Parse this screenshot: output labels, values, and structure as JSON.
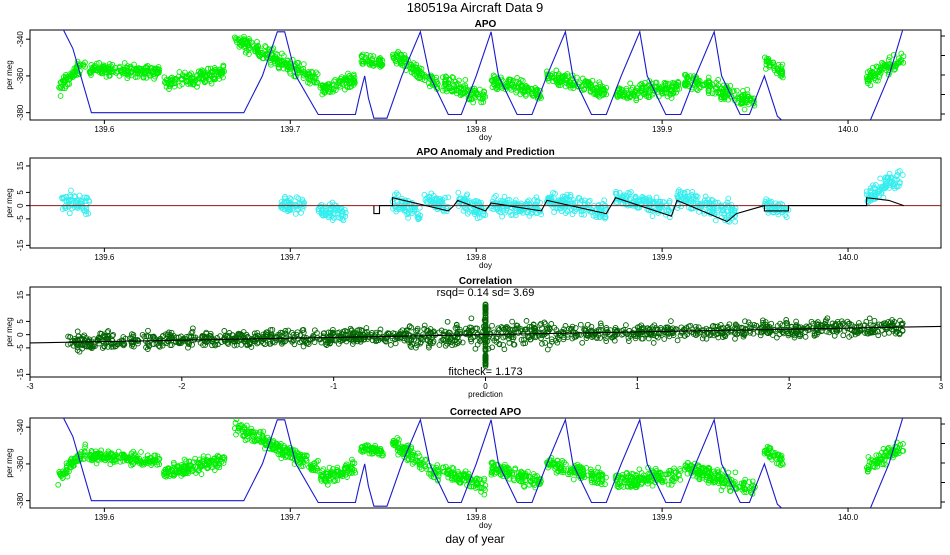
{
  "page": {
    "main_title": "180519a   Aircraft Data 9",
    "bottom_label": "day of year"
  },
  "colors": {
    "apo_points": "#00ee00",
    "altitude_line": "#1a1acc",
    "anomaly_points": "#33eeee",
    "zero_line": "#8b1a1a",
    "prediction_line": "#000000",
    "correlation_points": "#006400",
    "fit_line": "#000000"
  },
  "chart_data": [
    {
      "id": "apo",
      "type": "scatter",
      "title": "APO",
      "xlabel": "doy",
      "ylabel": "per meg",
      "xlim": [
        139.56,
        140.05
      ],
      "ylim": [
        -384,
        -335
      ],
      "xticks": [
        "139.6",
        "139.7",
        "139.8",
        "139.9",
        "140.0"
      ],
      "yticks": [
        "-340",
        "-360",
        "-380"
      ],
      "right_axis_ticks": 5,
      "series": [
        {
          "kind": "points",
          "segments": [
            {
              "x": [
                139.575,
                139.59
              ],
              "y": [
                -368,
                -352
              ],
              "spread": 6
            },
            {
              "x": [
                139.592,
                139.63
              ],
              "y": [
                -356,
                -358
              ],
              "spread": 5
            },
            {
              "x": [
                139.632,
                139.665
              ],
              "y": [
                -364,
                -358
              ],
              "spread": 6
            },
            {
              "x": [
                139.67,
                139.715
              ],
              "y": [
                -340,
                -362
              ],
              "spread": 6
            },
            {
              "x": [
                139.716,
                139.735
              ],
              "y": [
                -368,
                -362
              ],
              "spread": 6
            },
            {
              "x": [
                139.738,
                139.75
              ],
              "y": [
                -352,
                -353
              ],
              "spread": 5
            },
            {
              "x": [
                139.755,
                139.78
              ],
              "y": [
                -348,
                -366
              ],
              "spread": 6
            },
            {
              "x": [
                139.782,
                139.805
              ],
              "y": [
                -364,
                -372
              ],
              "spread": 7
            },
            {
              "x": [
                139.808,
                139.835
              ],
              "y": [
                -362,
                -370
              ],
              "spread": 6
            },
            {
              "x": [
                139.838,
                139.87
              ],
              "y": [
                -360,
                -368
              ],
              "spread": 6
            },
            {
              "x": [
                139.875,
                139.91
              ],
              "y": [
                -370,
                -366
              ],
              "spread": 7
            },
            {
              "x": [
                139.912,
                139.95
              ],
              "y": [
                -362,
                -374
              ],
              "spread": 7
            },
            {
              "x": [
                139.955,
                139.965
              ],
              "y": [
                -352,
                -358
              ],
              "spread": 5
            },
            {
              "x": [
                140.01,
                140.03
              ],
              "y": [
                -362,
                -350
              ],
              "spread": 6
            }
          ]
        },
        {
          "kind": "line",
          "name": "altitude",
          "points": [
            [
              139.56,
              -333
            ],
            [
              139.577,
              -333
            ],
            [
              139.583,
              -345
            ],
            [
              139.593,
              -380
            ],
            [
              139.675,
              -380
            ],
            [
              139.685,
              -360
            ],
            [
              139.693,
              -336
            ],
            [
              139.697,
              -336
            ],
            [
              139.703,
              -360
            ],
            [
              139.715,
              -381
            ],
            [
              139.735,
              -381
            ],
            [
              139.737,
              -372
            ],
            [
              139.74,
              -360
            ],
            [
              139.742,
              -372
            ],
            [
              139.745,
              -383
            ],
            [
              139.752,
              -383
            ],
            [
              139.76,
              -360
            ],
            [
              139.77,
              -336
            ],
            [
              139.775,
              -360
            ],
            [
              139.785,
              -381
            ],
            [
              139.792,
              -381
            ],
            [
              139.8,
              -360
            ],
            [
              139.808,
              -336
            ],
            [
              139.812,
              -360
            ],
            [
              139.822,
              -381
            ],
            [
              139.83,
              -381
            ],
            [
              139.838,
              -360
            ],
            [
              139.848,
              -336
            ],
            [
              139.852,
              -360
            ],
            [
              139.862,
              -381
            ],
            [
              139.87,
              -381
            ],
            [
              139.878,
              -360
            ],
            [
              139.888,
              -336
            ],
            [
              139.892,
              -360
            ],
            [
              139.902,
              -381
            ],
            [
              139.91,
              -381
            ],
            [
              139.918,
              -360
            ],
            [
              139.928,
              -336
            ],
            [
              139.932,
              -360
            ],
            [
              139.942,
              -381
            ],
            [
              139.947,
              -381
            ],
            [
              139.955,
              -360
            ],
            [
              139.962,
              -382
            ],
            [
              139.97,
              -389
            ],
            [
              140.0,
              -389
            ],
            [
              140.01,
              -389
            ],
            [
              140.022,
              -360
            ],
            [
              140.03,
              -333
            ],
            [
              140.05,
              -333
            ]
          ]
        }
      ]
    },
    {
      "id": "anomaly",
      "type": "scatter",
      "title": "APO Anomaly and Prediction",
      "xlabel": "doy",
      "ylabel": "per meg",
      "xlim": [
        139.56,
        140.05
      ],
      "ylim": [
        -16,
        18
      ],
      "xticks": [
        "139.6",
        "139.7",
        "139.8",
        "139.9",
        "140.0"
      ],
      "yticks": [
        "15",
        "5",
        "0",
        "-5",
        "-15"
      ],
      "series": [
        {
          "kind": "points",
          "segments": [
            {
              "x": [
                139.577,
                139.592
              ],
              "y": [
                2,
                0
              ],
              "spread": 6
            },
            {
              "x": [
                139.695,
                139.708
              ],
              "y": [
                1,
                0
              ],
              "spread": 4
            },
            {
              "x": [
                139.715,
                139.73
              ],
              "y": [
                -1,
                -3
              ],
              "spread": 5
            },
            {
              "x": [
                139.755,
                139.77
              ],
              "y": [
                2,
                -3
              ],
              "spread": 5
            },
            {
              "x": [
                139.772,
                139.785
              ],
              "y": [
                2,
                0
              ],
              "spread": 5
            },
            {
              "x": [
                139.79,
                139.805
              ],
              "y": [
                1,
                -2
              ],
              "spread": 5
            },
            {
              "x": [
                139.808,
                139.835
              ],
              "y": [
                0,
                -1
              ],
              "spread": 5
            },
            {
              "x": [
                139.838,
                139.87
              ],
              "y": [
                2,
                -2
              ],
              "spread": 5
            },
            {
              "x": [
                139.875,
                139.905
              ],
              "y": [
                3,
                -1
              ],
              "spread": 5
            },
            {
              "x": [
                139.908,
                139.94
              ],
              "y": [
                3,
                -3
              ],
              "spread": 6
            },
            {
              "x": [
                139.955,
                139.968
              ],
              "y": [
                0,
                -2
              ],
              "spread": 4
            },
            {
              "x": [
                140.01,
                140.03
              ],
              "y": [
                3,
                12
              ],
              "spread": 5
            }
          ]
        },
        {
          "kind": "hline",
          "name": "zero",
          "y": 0
        },
        {
          "kind": "line",
          "name": "prediction",
          "points": [
            [
              139.745,
              0
            ],
            [
              139.745,
              -3
            ],
            [
              139.748,
              -3
            ],
            [
              139.748,
              0
            ],
            [
              139.755,
              0
            ],
            [
              139.755,
              3
            ],
            [
              139.785,
              -2
            ],
            [
              139.788,
              0
            ],
            [
              139.79,
              2
            ],
            [
              139.805,
              -2
            ],
            [
              139.808,
              1
            ],
            [
              139.835,
              -2
            ],
            [
              139.838,
              2
            ],
            [
              139.87,
              -3
            ],
            [
              139.875,
              3
            ],
            [
              139.905,
              -4
            ],
            [
              139.908,
              2
            ],
            [
              139.935,
              -6
            ],
            [
              139.94,
              -3
            ],
            [
              139.955,
              0
            ],
            [
              139.955,
              -2
            ],
            [
              139.968,
              -2
            ],
            [
              139.968,
              0
            ],
            [
              140.01,
              0
            ],
            [
              140.01,
              3
            ],
            [
              140.022,
              2
            ],
            [
              140.03,
              0
            ]
          ]
        }
      ]
    },
    {
      "id": "correlation",
      "type": "scatter",
      "title": "Correlation",
      "xlabel": "prediction",
      "ylabel": "per meg",
      "xlim": [
        -3,
        3
      ],
      "ylim": [
        -16,
        18
      ],
      "xticks": [
        "-3",
        "-2",
        "-1",
        "0",
        "1",
        "2",
        "3"
      ],
      "yticks": [
        "15",
        "5",
        "0",
        "-5",
        "-15"
      ],
      "annotations": {
        "stats": "rsqd= 0.14 sd= 3.69",
        "fitcheck": "fitcheck= 1.173"
      },
      "series": [
        {
          "kind": "points",
          "name": "observed vs prediction",
          "slope": 1.0,
          "spread": 5,
          "xrange": [
            -2.75,
            2.75
          ]
        },
        {
          "kind": "line",
          "name": "fit",
          "points": [
            [
              -3.0,
              -3.1
            ],
            [
              3.0,
              3.1
            ]
          ]
        }
      ]
    },
    {
      "id": "corrected",
      "type": "scatter",
      "title": "Corrected APO",
      "xlabel": "doy",
      "ylabel": "per meg",
      "xlim": [
        139.56,
        140.05
      ],
      "ylim": [
        -384,
        -335
      ],
      "xticks": [
        "139.6",
        "139.7",
        "139.8",
        "139.9",
        "140.0"
      ],
      "yticks": [
        "-340",
        "-360",
        "-380"
      ],
      "right_axis_ticks": 5,
      "series": [
        {
          "kind": "points",
          "same_as": "apo"
        },
        {
          "kind": "line",
          "name": "altitude",
          "same_as": "apo"
        }
      ]
    }
  ]
}
